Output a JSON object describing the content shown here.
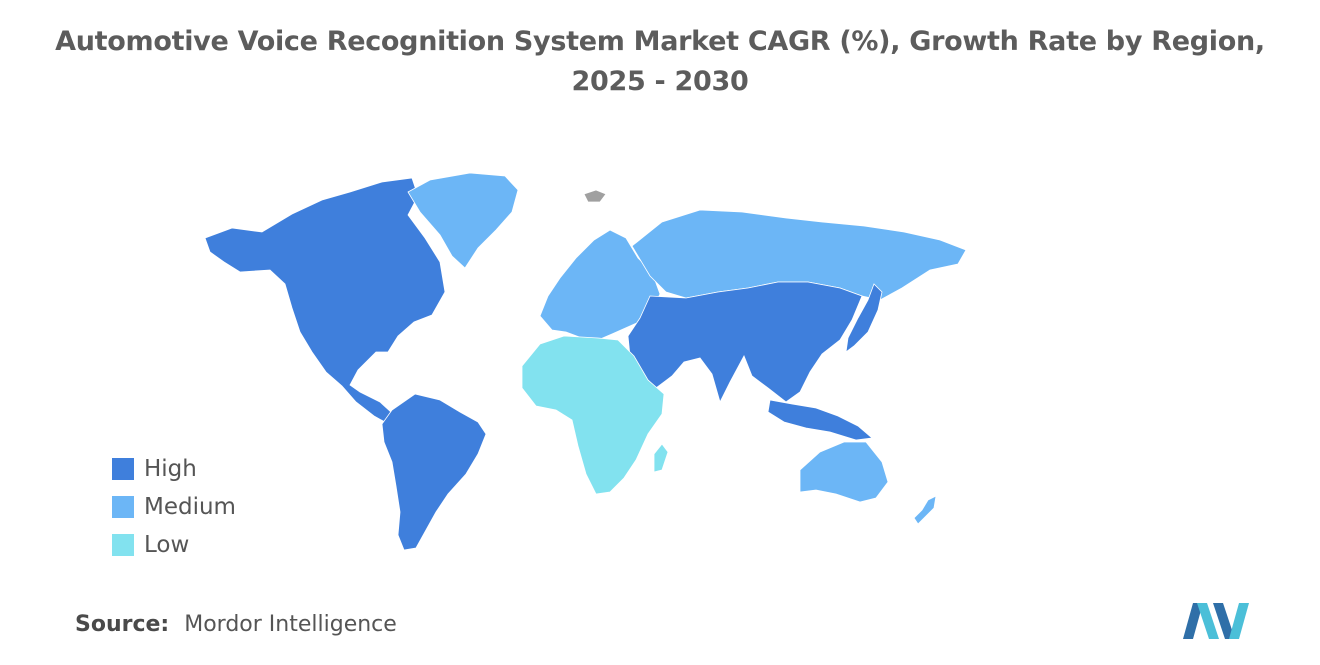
{
  "title": "Automotive Voice Recognition System Market CAGR (%), Growth Rate by Region, 2025 - 2030",
  "colors": {
    "high": "#3f7fdc",
    "medium": "#6cb6f6",
    "low": "#82e2ef",
    "no_data": "#a0a0a0",
    "logo_dark": "#2f6fa8",
    "logo_light": "#4bbfd8"
  },
  "legend": [
    {
      "label": "High",
      "color": "#3f7fdc"
    },
    {
      "label": "Medium",
      "color": "#6cb6f6"
    },
    {
      "label": "Low",
      "color": "#82e2ef"
    }
  ],
  "regions": [
    {
      "name": "North America",
      "level": "High"
    },
    {
      "name": "South America",
      "level": "High"
    },
    {
      "name": "Asia Pacific",
      "level": "High"
    },
    {
      "name": "Middle East",
      "level": "High"
    },
    {
      "name": "Greenland",
      "level": "Medium"
    },
    {
      "name": "Europe",
      "level": "Medium"
    },
    {
      "name": "Russia",
      "level": "Medium"
    },
    {
      "name": "Australia",
      "level": "Medium"
    },
    {
      "name": "New Zealand",
      "level": "Medium"
    },
    {
      "name": "Africa",
      "level": "Low"
    }
  ],
  "source": {
    "label": "Source:",
    "value": "Mordor Intelligence"
  },
  "logo_icon": "mordor-intelligence-logo-icon"
}
